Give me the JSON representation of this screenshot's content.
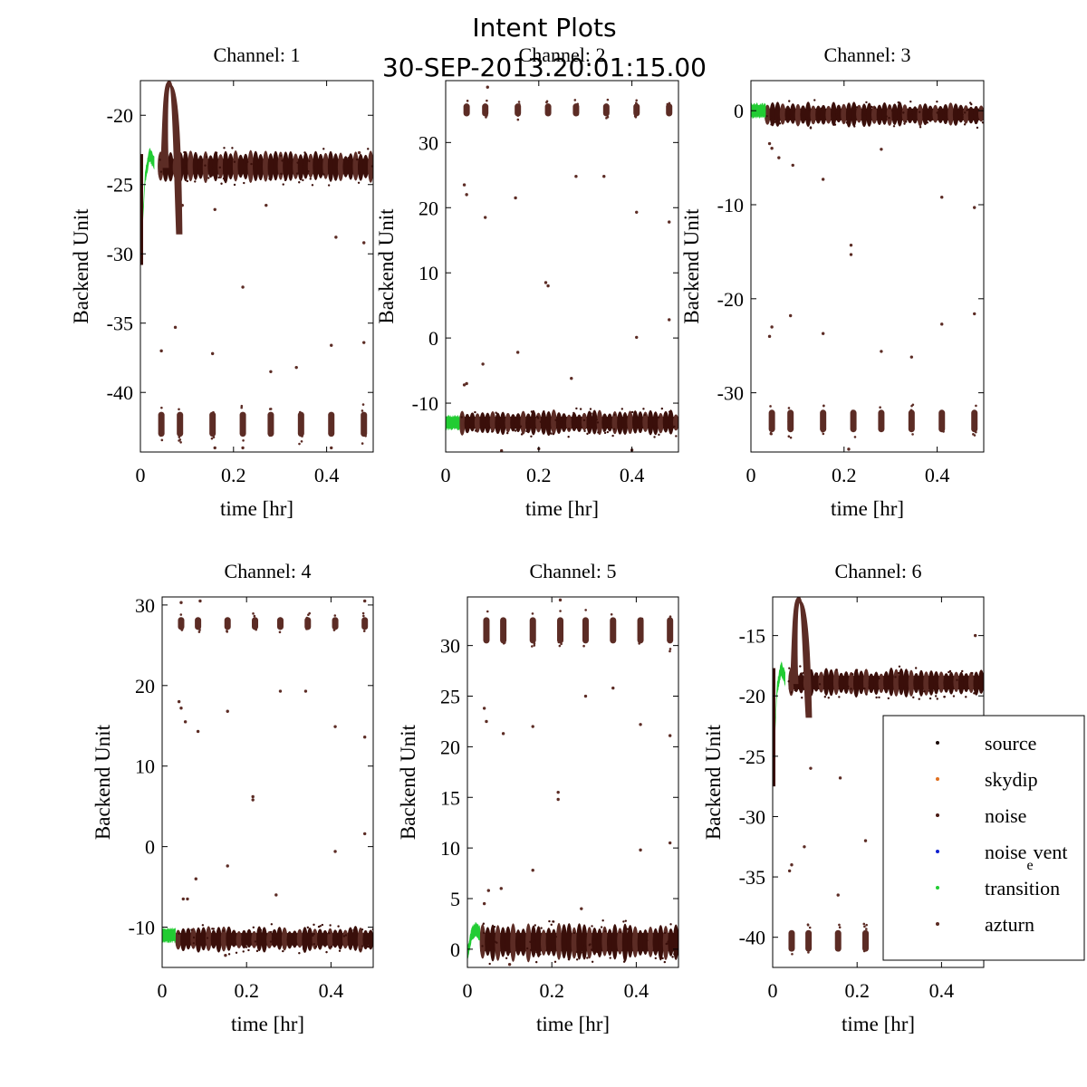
{
  "figure": {
    "title": "Intent Plots",
    "subtitle": "30-SEP-2013.20:01:15.00"
  },
  "legend": {
    "placement": "right, over Channel 6 panel",
    "entries": [
      {
        "label": "source",
        "color": "#1a0a08"
      },
      {
        "label": "skydip",
        "color": "#e07020"
      },
      {
        "label": "noise",
        "color": "#4a1a14"
      },
      {
        "label": "noise",
        "label_sub": "e",
        "label_rest": "vent",
        "color": "#1020d0"
      },
      {
        "label": "transition",
        "color": "#22cc33"
      },
      {
        "label": "azturn",
        "color": "#5a2a22"
      }
    ]
  },
  "colors": {
    "main_dark": "#3a0f0a",
    "main_mid": "#5c2c25",
    "transition": "#22cc33"
  },
  "chart_data": [
    {
      "type": "scatter",
      "title": "Channel: 1",
      "xlabel": "time [hr]",
      "ylabel": "Backend Unit",
      "xlim": [
        0,
        0.5
      ],
      "ylim": [
        -44.3,
        -17.5
      ],
      "xticks": [
        0,
        0.2,
        0.4
      ],
      "xtick_labels": [
        "0",
        "0.2",
        "0.4"
      ],
      "yticks": [
        -20,
        -25,
        -30,
        -35,
        -40
      ],
      "ytick_labels": [
        "-20",
        "-25",
        "-30",
        "-35",
        "-40"
      ],
      "grid": false,
      "main_band": {
        "level": -23.7,
        "spread": 0.8,
        "start": 0.038
      },
      "alt_band": {
        "level": -42.3,
        "spread": 0.9
      },
      "alt_clusters": [
        0.045,
        0.085,
        0.155,
        0.22,
        0.28,
        0.345,
        0.41,
        0.48
      ],
      "transition": {
        "start": 0.0,
        "end": 0.03,
        "levels": [
          -30.8,
          -24.5,
          -22.8,
          -23.5
        ]
      },
      "spike": {
        "x": 0.062,
        "peak": -17.6,
        "trough": -28.5
      },
      "outliers": [
        [
          0.045,
          -37.0
        ],
        [
          0.075,
          -35.3
        ],
        [
          0.155,
          -37.2
        ],
        [
          0.22,
          -32.4
        ],
        [
          0.28,
          -38.5
        ],
        [
          0.335,
          -38.2
        ],
        [
          0.41,
          -36.6
        ],
        [
          0.48,
          -36.4
        ],
        [
          0.42,
          -28.8
        ],
        [
          0.48,
          -29.2
        ],
        [
          0.16,
          -26.8
        ],
        [
          0.27,
          -26.5
        ],
        [
          0.47,
          -22.7
        ],
        [
          0.09,
          -26.5
        ],
        [
          0.16,
          -44.0
        ],
        [
          0.22,
          -44.0
        ],
        [
          0.41,
          -44.0
        ]
      ]
    },
    {
      "type": "scatter",
      "title": "Channel: 2",
      "xlabel": "time [hr]",
      "ylabel": "Backend Unit",
      "xlim": [
        0,
        0.5
      ],
      "ylim": [
        -17.5,
        39.5
      ],
      "xticks": [
        0,
        0.2,
        0.4
      ],
      "xtick_labels": [
        "0",
        "0.2",
        "0.4"
      ],
      "yticks": [
        30,
        20,
        10,
        0,
        -10
      ],
      "ytick_labels": [
        "30",
        "20",
        "10",
        "0",
        "-10"
      ],
      "grid": false,
      "main_band": {
        "level": -13.0,
        "spread": 1.3,
        "start": 0.03
      },
      "alt_band": {
        "level": 35.0,
        "spread": 1.0
      },
      "alt_clusters": [
        0.045,
        0.085,
        0.155,
        0.22,
        0.28,
        0.345,
        0.41,
        0.48
      ],
      "transition": {
        "start": 0.0,
        "end": 0.03,
        "levels": [
          -13.0,
          -13.0,
          -13.0,
          -13.0
        ]
      },
      "spike": null,
      "outliers": [
        [
          0.04,
          23.5
        ],
        [
          0.045,
          22.0
        ],
        [
          0.085,
          18.5
        ],
        [
          0.15,
          21.5
        ],
        [
          0.215,
          8.5
        ],
        [
          0.22,
          8.0
        ],
        [
          0.28,
          24.8
        ],
        [
          0.34,
          24.8
        ],
        [
          0.41,
          19.3
        ],
        [
          0.48,
          17.8
        ],
        [
          0.48,
          2.8
        ],
        [
          0.41,
          0.1
        ],
        [
          0.155,
          -2.2
        ],
        [
          0.27,
          -6.2
        ],
        [
          0.08,
          -4.0
        ],
        [
          0.04,
          -7.2
        ],
        [
          0.045,
          -7.0
        ],
        [
          0.2,
          -17.0
        ],
        [
          0.12,
          -17.3
        ],
        [
          0.4,
          -17.2
        ],
        [
          0.09,
          38.5
        ]
      ]
    },
    {
      "type": "scatter",
      "title": "Channel: 3",
      "xlabel": "time [hr]",
      "ylabel": "Backend Unit",
      "xlim": [
        0,
        0.5
      ],
      "ylim": [
        -36.3,
        3.2
      ],
      "xticks": [
        0,
        0.2,
        0.4
      ],
      "xtick_labels": [
        "0",
        "0.2",
        "0.4"
      ],
      "yticks": [
        0,
        -10,
        -20,
        -30
      ],
      "ytick_labels": [
        "0",
        "-10",
        "-20",
        "-30"
      ],
      "grid": false,
      "main_band": {
        "level": -0.4,
        "spread": 0.9,
        "start": 0.03
      },
      "alt_band": {
        "level": -33.0,
        "spread": 1.2
      },
      "alt_clusters": [
        0.045,
        0.085,
        0.155,
        0.22,
        0.28,
        0.345,
        0.41,
        0.48
      ],
      "transition": {
        "start": 0.0,
        "end": 0.032,
        "levels": [
          0.0,
          0.0,
          0.0,
          0.0
        ]
      },
      "spike": null,
      "outliers": [
        [
          0.04,
          -3.5
        ],
        [
          0.045,
          -4.0
        ],
        [
          0.06,
          -5.0
        ],
        [
          0.09,
          -5.8
        ],
        [
          0.155,
          -7.3
        ],
        [
          0.215,
          -14.3
        ],
        [
          0.215,
          -15.3
        ],
        [
          0.28,
          -4.1
        ],
        [
          0.41,
          -9.2
        ],
        [
          0.48,
          -10.3
        ],
        [
          0.045,
          -23.0
        ],
        [
          0.04,
          -24.0
        ],
        [
          0.085,
          -21.8
        ],
        [
          0.155,
          -23.7
        ],
        [
          0.28,
          -25.6
        ],
        [
          0.345,
          -26.2
        ],
        [
          0.41,
          -22.7
        ],
        [
          0.48,
          -21.6
        ],
        [
          0.21,
          -36.0
        ]
      ]
    },
    {
      "type": "scatter",
      "title": "Channel: 4",
      "xlabel": "time [hr]",
      "ylabel": "Backend Unit",
      "xlim": [
        0,
        0.5
      ],
      "ylim": [
        -15.0,
        31.0
      ],
      "xticks": [
        0,
        0.2,
        0.4
      ],
      "xtick_labels": [
        "0",
        "0.2",
        "0.4"
      ],
      "yticks": [
        30,
        20,
        10,
        0,
        -10
      ],
      "ytick_labels": [
        "30",
        "20",
        "10",
        "0",
        "-10"
      ],
      "grid": false,
      "main_band": {
        "level": -11.5,
        "spread": 1.1,
        "start": 0.032
      },
      "alt_band": {
        "level": 27.7,
        "spread": 0.8
      },
      "alt_clusters": [
        0.045,
        0.085,
        0.155,
        0.22,
        0.28,
        0.345,
        0.41,
        0.48
      ],
      "transition": {
        "start": 0.0,
        "end": 0.032,
        "levels": [
          -11.0,
          -11.0,
          -11.0,
          -11.0
        ]
      },
      "spike": null,
      "outliers": [
        [
          0.04,
          18.0
        ],
        [
          0.045,
          17.2
        ],
        [
          0.055,
          15.5
        ],
        [
          0.085,
          14.3
        ],
        [
          0.155,
          16.8
        ],
        [
          0.215,
          6.2
        ],
        [
          0.215,
          5.8
        ],
        [
          0.28,
          19.3
        ],
        [
          0.34,
          19.3
        ],
        [
          0.41,
          14.9
        ],
        [
          0.48,
          13.6
        ],
        [
          0.48,
          1.6
        ],
        [
          0.41,
          -0.6
        ],
        [
          0.155,
          -2.4
        ],
        [
          0.27,
          -6.0
        ],
        [
          0.08,
          -4.0
        ],
        [
          0.05,
          -6.5
        ],
        [
          0.06,
          -6.5
        ],
        [
          0.09,
          30.5
        ],
        [
          0.045,
          30.3
        ],
        [
          0.48,
          30.5
        ],
        [
          0.15,
          -13.5
        ]
      ]
    },
    {
      "type": "scatter",
      "title": "Channel: 5",
      "xlabel": "time [hr]",
      "ylabel": "Backend Unit",
      "xlim": [
        0,
        0.5
      ],
      "ylim": [
        -1.8,
        34.8
      ],
      "xticks": [
        0,
        0.2,
        0.4
      ],
      "xtick_labels": [
        "0",
        "0.2",
        "0.4"
      ],
      "yticks": [
        30,
        25,
        20,
        15,
        10,
        5,
        0
      ],
      "ytick_labels": [
        "30",
        "25",
        "20",
        "15",
        "10",
        "5",
        "0"
      ],
      "grid": false,
      "main_band": {
        "level": 0.7,
        "spread": 1.3,
        "start": 0.03
      },
      "alt_band": {
        "level": 31.5,
        "spread": 1.3
      },
      "alt_clusters": [
        0.045,
        0.085,
        0.155,
        0.22,
        0.28,
        0.345,
        0.41,
        0.48
      ],
      "transition": {
        "start": 0.0,
        "end": 0.03,
        "levels": [
          -0.6,
          1.5,
          2.0,
          1.5
        ]
      },
      "spike": null,
      "outliers": [
        [
          0.04,
          23.8
        ],
        [
          0.045,
          22.5
        ],
        [
          0.085,
          21.3
        ],
        [
          0.155,
          22.0
        ],
        [
          0.215,
          15.5
        ],
        [
          0.215,
          14.8
        ],
        [
          0.28,
          25.0
        ],
        [
          0.345,
          25.8
        ],
        [
          0.41,
          22.2
        ],
        [
          0.48,
          21.1
        ],
        [
          0.48,
          10.5
        ],
        [
          0.41,
          9.8
        ],
        [
          0.155,
          7.8
        ],
        [
          0.27,
          4.0
        ],
        [
          0.08,
          6.0
        ],
        [
          0.05,
          5.8
        ],
        [
          0.04,
          4.5
        ],
        [
          0.22,
          34.5
        ],
        [
          0.1,
          -1.5
        ]
      ]
    },
    {
      "type": "scatter",
      "title": "Channel: 6",
      "xlabel": "time [hr]",
      "ylabel": "Backend Unit",
      "xlim": [
        0,
        0.5
      ],
      "ylim": [
        -42.5,
        -11.8
      ],
      "xticks": [
        0,
        0.2,
        0.4
      ],
      "xtick_labels": [
        "0",
        "0.2",
        "0.4"
      ],
      "yticks": [
        -15,
        -20,
        -25,
        -30,
        -35,
        -40
      ],
      "ytick_labels": [
        "-15",
        "-20",
        "-25",
        "-30",
        "-35",
        "-40"
      ],
      "grid": false,
      "main_band": {
        "level": -18.9,
        "spread": 0.8,
        "start": 0.038
      },
      "alt_band": {
        "level": -40.3,
        "spread": 0.9
      },
      "alt_clusters": [
        0.045,
        0.085,
        0.155,
        0.22,
        0.28,
        0.345,
        0.41,
        0.48
      ],
      "transition": {
        "start": 0.0,
        "end": 0.03,
        "levels": [
          -27.5,
          -19.5,
          -17.7,
          -18.6
        ]
      },
      "spike": {
        "x": 0.062,
        "peak": -11.9,
        "trough": -21.7
      },
      "outliers": [
        [
          0.045,
          -34.0
        ],
        [
          0.04,
          -34.5
        ],
        [
          0.075,
          -32.5
        ],
        [
          0.155,
          -36.5
        ],
        [
          0.22,
          -32.0
        ],
        [
          0.28,
          -35.8
        ],
        [
          0.345,
          -36.8
        ],
        [
          0.41,
          -34.5
        ],
        [
          0.42,
          -28.8
        ],
        [
          0.27,
          -28.0
        ],
        [
          0.16,
          -26.8
        ],
        [
          0.09,
          -26.0
        ],
        [
          0.48,
          -15.0
        ]
      ]
    }
  ]
}
